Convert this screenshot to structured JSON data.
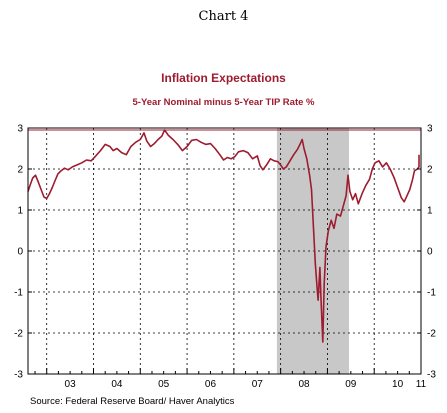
{
  "document": {
    "title": "Chart 4",
    "source": "Source:  Federal Reserve Board/ Haver Analytics"
  },
  "chart_data": {
    "type": "line",
    "title": "Inflation Expectations",
    "subtitle": "5-Year Nominal minus 5-Year TIP Rate   %",
    "ylim": [
      -3,
      3
    ],
    "y_ticks": [
      3,
      2,
      1,
      0,
      -1,
      -2,
      -3
    ],
    "y_tick_labels": [
      "3",
      "2",
      "1",
      "0",
      "-1",
      "-2",
      "-3"
    ],
    "x_range": [
      2002.6,
      2011.0
    ],
    "x_year_labels": [
      {
        "label": "03",
        "at": 2003.5
      },
      {
        "label": "04",
        "at": 2004.5
      },
      {
        "label": "05",
        "at": 2005.5
      },
      {
        "label": "06",
        "at": 2006.5
      },
      {
        "label": "07",
        "at": 2007.5
      },
      {
        "label": "08",
        "at": 2008.5
      },
      {
        "label": "09",
        "at": 2009.5
      },
      {
        "label": "10",
        "at": 2010.5
      },
      {
        "label": "11",
        "at": 2011.0
      }
    ],
    "x_year_ticks": [
      2003,
      2004,
      2005,
      2006,
      2007,
      2008,
      2009,
      2010,
      2011
    ],
    "recession_shading": {
      "start": 2007.92,
      "end": 2009.46
    },
    "reference_line": {
      "y": 2.95
    },
    "grid": "dashed vertical at year ends, dashed horizontal at integers",
    "colors": {
      "series": "#9e1c30",
      "shading": "#c8c8c8",
      "title": "#9e1c30"
    },
    "series": [
      {
        "values": [
          [
            2002.6,
            1.45
          ],
          [
            2002.65,
            1.62
          ],
          [
            2002.7,
            1.78
          ],
          [
            2002.76,
            1.85
          ],
          [
            2002.82,
            1.68
          ],
          [
            2002.88,
            1.5
          ],
          [
            2002.94,
            1.32
          ],
          [
            2003.0,
            1.28
          ],
          [
            2003.06,
            1.4
          ],
          [
            2003.12,
            1.55
          ],
          [
            2003.18,
            1.72
          ],
          [
            2003.24,
            1.88
          ],
          [
            2003.3,
            1.95
          ],
          [
            2003.38,
            2.02
          ],
          [
            2003.46,
            1.98
          ],
          [
            2003.55,
            2.05
          ],
          [
            2003.65,
            2.1
          ],
          [
            2003.75,
            2.15
          ],
          [
            2003.85,
            2.22
          ],
          [
            2003.95,
            2.2
          ],
          [
            2004.05,
            2.32
          ],
          [
            2004.15,
            2.45
          ],
          [
            2004.25,
            2.6
          ],
          [
            2004.35,
            2.55
          ],
          [
            2004.42,
            2.45
          ],
          [
            2004.5,
            2.5
          ],
          [
            2004.6,
            2.4
          ],
          [
            2004.7,
            2.35
          ],
          [
            2004.8,
            2.55
          ],
          [
            2004.9,
            2.65
          ],
          [
            2005.0,
            2.72
          ],
          [
            2005.08,
            2.88
          ],
          [
            2005.14,
            2.68
          ],
          [
            2005.22,
            2.55
          ],
          [
            2005.3,
            2.62
          ],
          [
            2005.38,
            2.72
          ],
          [
            2005.46,
            2.8
          ],
          [
            2005.52,
            2.95
          ],
          [
            2005.6,
            2.82
          ],
          [
            2005.7,
            2.72
          ],
          [
            2005.8,
            2.6
          ],
          [
            2005.9,
            2.45
          ],
          [
            2006.0,
            2.55
          ],
          [
            2006.1,
            2.7
          ],
          [
            2006.2,
            2.72
          ],
          [
            2006.3,
            2.65
          ],
          [
            2006.4,
            2.6
          ],
          [
            2006.5,
            2.62
          ],
          [
            2006.6,
            2.5
          ],
          [
            2006.7,
            2.35
          ],
          [
            2006.78,
            2.22
          ],
          [
            2006.86,
            2.28
          ],
          [
            2006.94,
            2.25
          ],
          [
            2007.02,
            2.3
          ],
          [
            2007.1,
            2.42
          ],
          [
            2007.2,
            2.45
          ],
          [
            2007.3,
            2.4
          ],
          [
            2007.4,
            2.25
          ],
          [
            2007.5,
            2.32
          ],
          [
            2007.56,
            2.08
          ],
          [
            2007.62,
            1.98
          ],
          [
            2007.7,
            2.1
          ],
          [
            2007.78,
            2.25
          ],
          [
            2007.86,
            2.2
          ],
          [
            2007.94,
            2.18
          ],
          [
            2008.0,
            2.1
          ],
          [
            2008.06,
            2.0
          ],
          [
            2008.12,
            2.05
          ],
          [
            2008.2,
            2.2
          ],
          [
            2008.28,
            2.35
          ],
          [
            2008.36,
            2.48
          ],
          [
            2008.42,
            2.62
          ],
          [
            2008.46,
            2.72
          ],
          [
            2008.5,
            2.5
          ],
          [
            2008.56,
            2.25
          ],
          [
            2008.62,
            1.85
          ],
          [
            2008.66,
            1.5
          ],
          [
            2008.7,
            0.6
          ],
          [
            2008.74,
            -0.3
          ],
          [
            2008.78,
            -0.9
          ],
          [
            2008.8,
            -1.2
          ],
          [
            2008.84,
            -0.4
          ],
          [
            2008.86,
            -1.1
          ],
          [
            2008.9,
            -2.22
          ],
          [
            2008.93,
            -0.8
          ],
          [
            2008.97,
            0.1
          ],
          [
            2009.02,
            0.5
          ],
          [
            2009.08,
            0.75
          ],
          [
            2009.14,
            0.55
          ],
          [
            2009.2,
            0.9
          ],
          [
            2009.28,
            0.85
          ],
          [
            2009.34,
            1.1
          ],
          [
            2009.4,
            1.35
          ],
          [
            2009.44,
            1.85
          ],
          [
            2009.48,
            1.45
          ],
          [
            2009.54,
            1.25
          ],
          [
            2009.6,
            1.4
          ],
          [
            2009.66,
            1.15
          ],
          [
            2009.74,
            1.4
          ],
          [
            2009.82,
            1.6
          ],
          [
            2009.9,
            1.75
          ],
          [
            2009.96,
            2.0
          ],
          [
            2010.02,
            2.15
          ],
          [
            2010.1,
            2.2
          ],
          [
            2010.18,
            2.05
          ],
          [
            2010.26,
            2.15
          ],
          [
            2010.34,
            2.0
          ],
          [
            2010.42,
            1.8
          ],
          [
            2010.5,
            1.55
          ],
          [
            2010.58,
            1.3
          ],
          [
            2010.64,
            1.2
          ],
          [
            2010.7,
            1.35
          ],
          [
            2010.76,
            1.5
          ],
          [
            2010.82,
            1.75
          ],
          [
            2010.86,
            1.95
          ],
          [
            2010.92,
            2.0
          ],
          [
            2010.96,
            2.05
          ],
          [
            2011.02,
            2.15
          ],
          [
            2011.08,
            2.2
          ],
          [
            2011.14,
            2.3
          ],
          [
            2011.2,
            2.28
          ],
          [
            2011.26,
            2.35
          ]
        ]
      }
    ]
  }
}
